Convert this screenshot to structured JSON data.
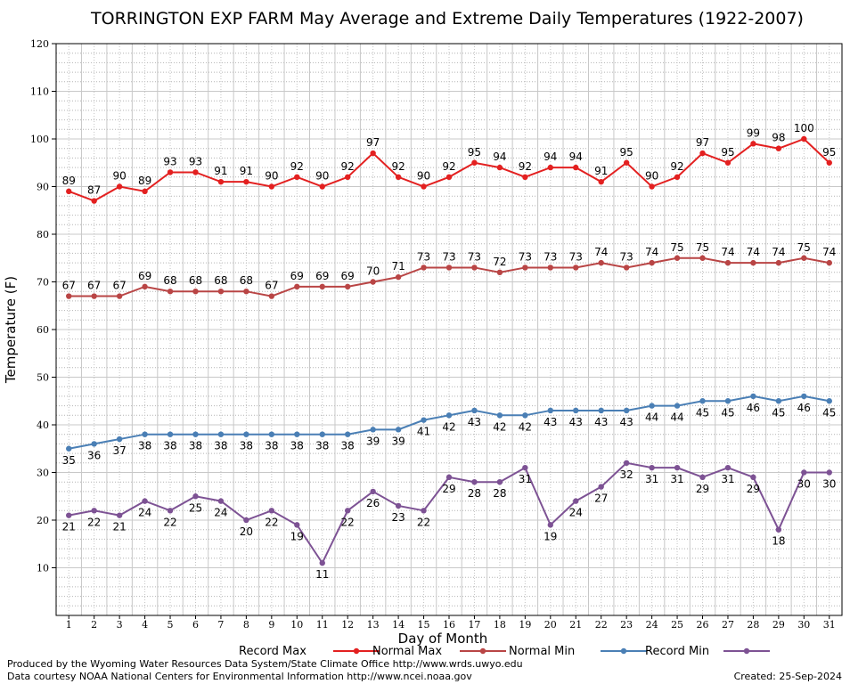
{
  "chart_data": {
    "type": "line",
    "title": "TORRINGTON EXP FARM May Average and Extreme Daily Temperatures (1922-2007)",
    "xlabel": "Day of Month",
    "ylabel": "Temperature (F)",
    "ylim": [
      0,
      120
    ],
    "xlim": [
      0.5,
      31.5
    ],
    "yticks": [
      10,
      20,
      30,
      40,
      50,
      60,
      70,
      80,
      90,
      100,
      110,
      120
    ],
    "x": [
      1,
      2,
      3,
      4,
      5,
      6,
      7,
      8,
      9,
      10,
      11,
      12,
      13,
      14,
      15,
      16,
      17,
      18,
      19,
      20,
      21,
      22,
      23,
      24,
      25,
      26,
      27,
      28,
      29,
      30,
      31
    ],
    "grid": true,
    "legend_position": "bottom",
    "series": [
      {
        "name": "Record Max",
        "color": "#e32020",
        "label_side": "above",
        "values": [
          89,
          87,
          90,
          89,
          93,
          93,
          91,
          91,
          90,
          92,
          90,
          92,
          97,
          92,
          90,
          92,
          95,
          94,
          92,
          94,
          94,
          91,
          95,
          90,
          92,
          97,
          95,
          99,
          98,
          100,
          95
        ]
      },
      {
        "name": "Normal Max",
        "color": "#b94545",
        "label_side": "above",
        "values": [
          67,
          67,
          67,
          69,
          68,
          68,
          68,
          68,
          67,
          69,
          69,
          69,
          70,
          71,
          73,
          73,
          73,
          72,
          73,
          73,
          73,
          74,
          73,
          74,
          75,
          75,
          74,
          74,
          74,
          75,
          74
        ]
      },
      {
        "name": "Normal Min",
        "color": "#4a7fb5",
        "label_side": "below",
        "values": [
          35,
          36,
          37,
          38,
          38,
          38,
          38,
          38,
          38,
          38,
          38,
          38,
          39,
          39,
          41,
          42,
          43,
          42,
          42,
          43,
          43,
          43,
          43,
          44,
          44,
          45,
          45,
          46,
          45,
          46,
          45
        ]
      },
      {
        "name": "Record Min",
        "color": "#7d5294",
        "label_side": "below",
        "values": [
          21,
          22,
          21,
          24,
          22,
          25,
          24,
          20,
          22,
          19,
          11,
          22,
          26,
          23,
          22,
          29,
          28,
          28,
          31,
          19,
          24,
          27,
          32,
          31,
          31,
          29,
          31,
          29,
          18,
          30,
          30
        ]
      }
    ]
  },
  "footer": {
    "produced_by": "Produced by the Wyoming Water Resources Data System/State Climate Office http://www.wrds.uwyo.edu",
    "courtesy": "Data courtesy NOAA National Centers for Environmental Information http://www.ncei.noaa.gov",
    "created": "Created:  25-Sep-2024"
  }
}
